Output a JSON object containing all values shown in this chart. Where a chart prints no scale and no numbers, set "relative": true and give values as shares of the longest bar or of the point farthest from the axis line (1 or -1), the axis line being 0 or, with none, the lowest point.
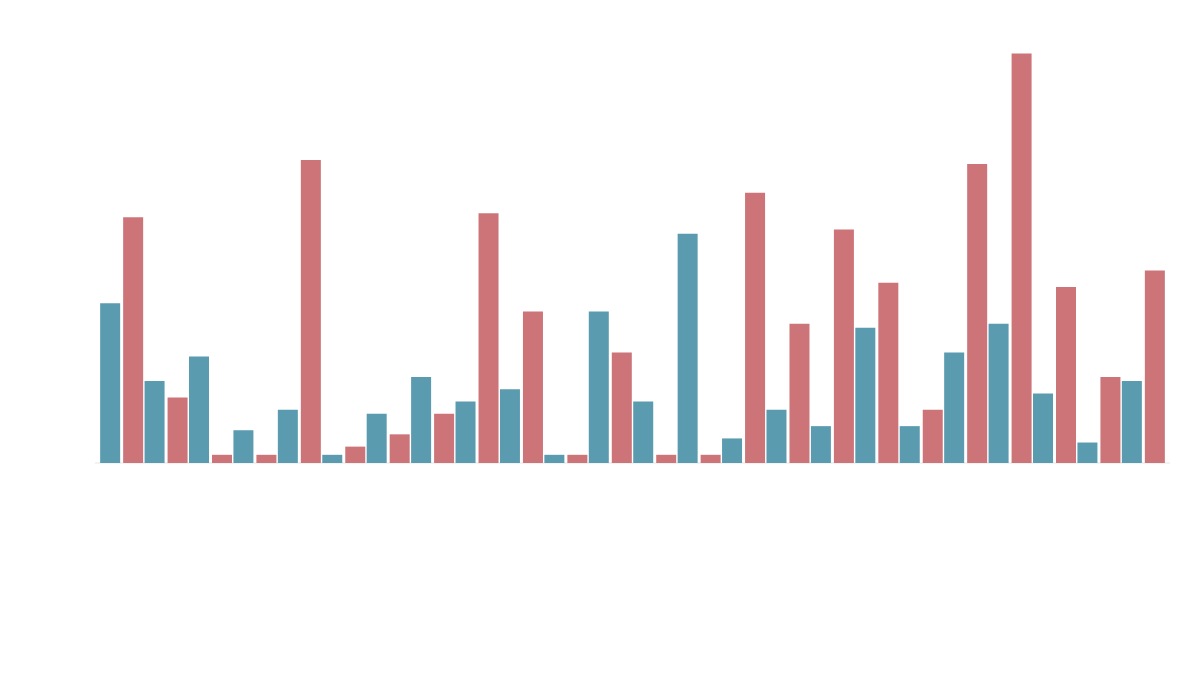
{
  "chart_data": {
    "type": "bar",
    "relative": true,
    "categories": [
      null,
      null,
      null,
      null,
      null,
      null,
      null,
      null,
      null,
      null,
      null,
      null,
      null,
      null,
      null,
      null,
      null,
      null,
      null,
      null,
      null,
      null,
      null,
      null
    ],
    "series": [
      {
        "color": "#5a9bb0",
        "values": [
          0.39,
          0.2,
          0.26,
          0.08,
          0.13,
          0.02,
          0.12,
          0.21,
          0.15,
          0.18,
          0.02,
          0.37,
          0.15,
          0.56,
          0.06,
          0.13,
          0.09,
          0.33,
          0.09,
          0.27,
          0.34,
          0.17,
          0.05,
          0.2
        ]
      },
      {
        "color": "#cc7478",
        "values": [
          0.6,
          0.16,
          0.02,
          0.02,
          0.74,
          0.04,
          0.07,
          0.12,
          0.61,
          0.37,
          0.02,
          0.27,
          0.02,
          0.02,
          0.66,
          0.34,
          0.57,
          0.44,
          0.13,
          0.73,
          1.0,
          0.43,
          0.21,
          0.47
        ]
      }
    ]
  }
}
